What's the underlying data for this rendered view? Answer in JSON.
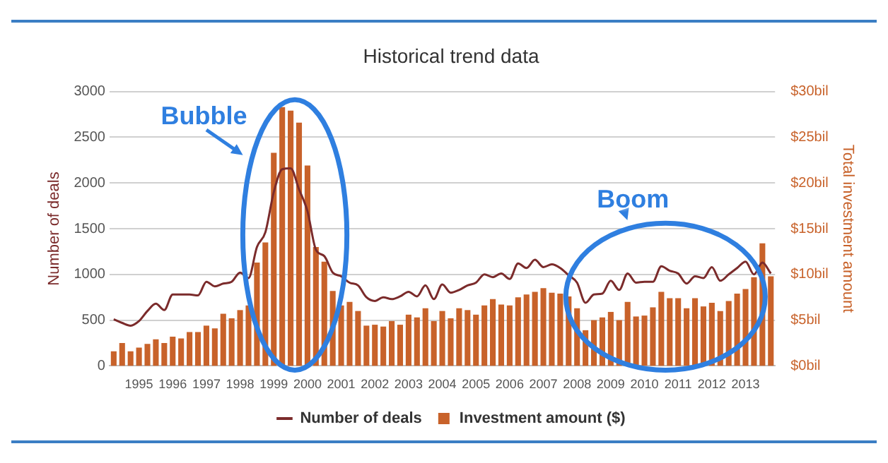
{
  "chart_data": {
    "type": "bar",
    "title": "Historical trend data",
    "categories": [
      null,
      null,
      null,
      "1995",
      null,
      null,
      null,
      "1996",
      null,
      null,
      null,
      "1997",
      null,
      null,
      null,
      "1998",
      null,
      null,
      null,
      "1999",
      null,
      null,
      null,
      "2000",
      null,
      null,
      null,
      "2001",
      null,
      null,
      null,
      "2002",
      null,
      null,
      null,
      "2003",
      null,
      null,
      null,
      "2004",
      null,
      null,
      null,
      "2005",
      null,
      null,
      null,
      "2006",
      null,
      null,
      null,
      "2007",
      null,
      null,
      null,
      "2008",
      null,
      null,
      null,
      "2009",
      null,
      null,
      null,
      "2010",
      null,
      null,
      null,
      "2011",
      null,
      null,
      null,
      "2012",
      null,
      null,
      null,
      "2013",
      null,
      null,
      null
    ],
    "series": [
      {
        "name": "Number of deals",
        "type": "line",
        "color": "#7b2b2b",
        "values": [
          510,
          470,
          440,
          490,
          600,
          680,
          610,
          780,
          780,
          780,
          770,
          920,
          870,
          900,
          920,
          1020,
          960,
          1300,
          1460,
          1900,
          2150,
          2160,
          1930,
          1690,
          1270,
          1200,
          1020,
          980,
          910,
          880,
          750,
          710,
          750,
          730,
          760,
          810,
          760,
          880,
          730,
          890,
          800,
          830,
          880,
          910,
          1000,
          970,
          1010,
          950,
          1120,
          1070,
          1160,
          1080,
          1110,
          1070,
          990,
          910,
          690,
          780,
          790,
          930,
          830,
          1010,
          910,
          920,
          920,
          1090,
          1040,
          1010,
          900,
          980,
          960,
          1080,
          930,
          1000,
          1070,
          1140,
          1000,
          1130,
          1010
        ]
      },
      {
        "name": "Investment amount ($)",
        "axis": "y2",
        "color": "#c8622a",
        "values": [
          1.6,
          2.5,
          1.6,
          2.0,
          2.4,
          2.9,
          2.5,
          3.2,
          3.0,
          3.7,
          3.7,
          4.4,
          4.1,
          5.7,
          5.2,
          6.1,
          6.6,
          11.3,
          13.5,
          23.3,
          28.3,
          27.9,
          26.6,
          21.9,
          13.0,
          11.4,
          8.2,
          6.6,
          7.0,
          6.0,
          4.4,
          4.5,
          4.3,
          4.9,
          4.5,
          5.6,
          5.3,
          6.3,
          4.9,
          6.0,
          5.2,
          6.3,
          6.1,
          5.6,
          6.6,
          7.3,
          6.7,
          6.6,
          7.5,
          7.8,
          8.1,
          8.5,
          8.0,
          7.9,
          7.6,
          6.3,
          3.9,
          5.0,
          5.3,
          5.9,
          5.0,
          7.0,
          5.4,
          5.5,
          6.4,
          8.1,
          7.4,
          7.4,
          6.3,
          7.4,
          6.5,
          6.9,
          6.0,
          7.1,
          7.9,
          8.4,
          9.7,
          13.4,
          9.8
        ]
      }
    ],
    "ylabel": "Number of deals",
    "y2label": "Total investment amount",
    "ylim": [
      0,
      3000
    ],
    "yticks": [
      0,
      500,
      1000,
      1500,
      2000,
      2500,
      3000
    ],
    "y2lim": [
      0,
      30
    ],
    "y2ticks": [
      {
        "value": 0,
        "label": "$0bil"
      },
      {
        "value": 5,
        "label": "$5bil"
      },
      {
        "value": 10,
        "label": "$10bil"
      },
      {
        "value": 15,
        "label": "$15bil"
      },
      {
        "value": 20,
        "label": "$20bil"
      },
      {
        "value": 25,
        "label": "$25bil"
      },
      {
        "value": 30,
        "label": "$30bil"
      }
    ],
    "grid": "y",
    "legend": "bottom",
    "marker": "none",
    "annotations": [
      "Bubble",
      "Boom"
    ]
  }
}
